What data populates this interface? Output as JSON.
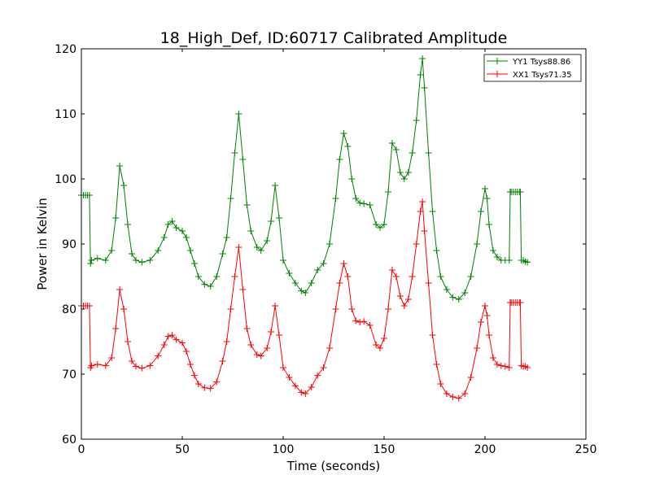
{
  "chart_data": {
    "type": "line",
    "title": "18_High_Def, ID:60717 Calibrated Amplitude",
    "xlabel": "Time (seconds)",
    "ylabel": "Power in Kelvin",
    "xlim": [
      0,
      250
    ],
    "ylim": [
      60,
      120
    ],
    "xticks": [
      0,
      50,
      100,
      150,
      200,
      250
    ],
    "yticks": [
      60,
      70,
      80,
      90,
      100,
      110,
      120
    ],
    "grid": false,
    "legend_position": "top-right",
    "marker": "+",
    "series": [
      {
        "name": "YY1 Tsys88.86",
        "color": "#008000",
        "x": [
          0,
          1,
          2,
          3,
          4,
          4.5,
          5,
          8,
          12,
          15,
          17,
          19,
          21,
          23,
          25,
          27,
          30,
          34,
          38,
          41,
          43,
          45,
          47,
          50,
          52,
          54,
          56,
          58,
          61,
          64,
          67,
          70,
          72,
          74,
          76,
          78,
          80,
          82,
          84,
          87,
          89,
          92,
          94,
          96,
          98,
          100,
          103,
          106,
          109,
          111,
          114,
          117,
          120,
          123,
          126,
          128,
          130,
          132,
          134,
          136,
          138,
          140,
          143,
          146,
          148,
          150,
          152,
          154,
          156,
          158,
          160,
          162,
          164,
          166,
          168,
          169,
          170,
          172,
          174,
          176,
          178,
          181,
          184,
          187,
          190,
          193,
          196,
          198,
          200,
          201,
          202,
          204,
          206,
          208,
          210,
          212,
          212.5,
          213,
          214,
          215,
          216,
          217,
          217.5,
          218,
          219,
          220,
          221
        ],
        "y": [
          97.5,
          97.5,
          97.5,
          97.5,
          97.5,
          87.0,
          87.5,
          87.8,
          87.5,
          89.0,
          94.0,
          102.0,
          99.0,
          93.0,
          88.5,
          87.5,
          87.2,
          87.5,
          89.0,
          91.0,
          93.0,
          93.5,
          92.5,
          92.0,
          91.0,
          89.0,
          87.0,
          85.0,
          83.8,
          83.5,
          85.0,
          88.5,
          91.0,
          97.0,
          104.0,
          110.0,
          103.0,
          96.0,
          92.0,
          89.5,
          89.0,
          90.5,
          93.5,
          99.0,
          94.0,
          87.5,
          85.5,
          84.0,
          82.8,
          82.5,
          84.0,
          86.0,
          87.0,
          90.0,
          97.0,
          103.0,
          107.0,
          105.0,
          100.0,
          97.0,
          96.3,
          96.2,
          96.0,
          93.0,
          92.5,
          93.0,
          98.0,
          105.5,
          104.5,
          101.0,
          100.0,
          101.0,
          104.0,
          109.0,
          116.0,
          118.5,
          114.0,
          104.0,
          95.0,
          89.0,
          85.0,
          83.0,
          81.8,
          81.5,
          82.5,
          85.0,
          90.0,
          95.0,
          98.5,
          97.0,
          93.0,
          89.0,
          88.0,
          87.5,
          87.5,
          87.5,
          98.0,
          98.0,
          98.0,
          98.0,
          98.0,
          98.0,
          98.0,
          87.5,
          87.5,
          87.3,
          87.2
        ]
      },
      {
        "name": "XX1 Tsys71.35",
        "color": "#ff0000",
        "x": [
          0,
          1,
          2,
          3,
          4,
          4.5,
          5,
          8,
          12,
          15,
          17,
          19,
          21,
          23,
          25,
          27,
          30,
          34,
          38,
          41,
          43,
          45,
          47,
          50,
          52,
          54,
          56,
          58,
          61,
          64,
          67,
          70,
          72,
          74,
          76,
          78,
          80,
          82,
          84,
          87,
          89,
          92,
          94,
          96,
          98,
          100,
          103,
          106,
          109,
          111,
          114,
          117,
          120,
          123,
          126,
          128,
          130,
          132,
          134,
          136,
          138,
          140,
          143,
          146,
          148,
          150,
          152,
          154,
          156,
          158,
          160,
          162,
          164,
          166,
          168,
          169,
          170,
          172,
          174,
          176,
          178,
          181,
          184,
          187,
          190,
          193,
          196,
          198,
          200,
          201,
          202,
          204,
          206,
          208,
          210,
          212,
          212.5,
          213,
          214,
          215,
          216,
          217,
          217.5,
          218,
          219,
          220,
          221
        ],
        "y": [
          80.5,
          80.5,
          80.5,
          80.5,
          80.5,
          71.0,
          71.3,
          71.5,
          71.3,
          72.5,
          77.0,
          83.0,
          80.0,
          75.0,
          72.0,
          71.2,
          70.9,
          71.3,
          72.8,
          74.5,
          75.8,
          76.0,
          75.3,
          74.8,
          73.5,
          71.5,
          69.8,
          68.5,
          67.9,
          67.8,
          68.8,
          72.0,
          75.0,
          80.0,
          85.0,
          89.5,
          83.0,
          77.0,
          74.5,
          73.0,
          72.8,
          74.0,
          76.5,
          80.5,
          76.0,
          71.0,
          69.5,
          68.2,
          67.2,
          67.0,
          68.0,
          69.8,
          71.0,
          74.0,
          80.0,
          84.0,
          87.0,
          85.0,
          80.0,
          78.2,
          78.0,
          78.1,
          77.5,
          74.5,
          74.0,
          75.5,
          80.0,
          86.0,
          85.0,
          82.0,
          80.5,
          81.5,
          85.0,
          90.0,
          95.0,
          96.5,
          92.0,
          84.0,
          76.0,
          71.5,
          68.5,
          67.0,
          66.5,
          66.3,
          67.0,
          69.5,
          74.0,
          78.0,
          80.5,
          79.0,
          76.0,
          72.5,
          71.5,
          71.3,
          71.2,
          71.0,
          81.0,
          81.0,
          81.0,
          81.0,
          81.0,
          81.0,
          81.0,
          71.3,
          71.2,
          71.2,
          71.0
        ]
      }
    ]
  }
}
